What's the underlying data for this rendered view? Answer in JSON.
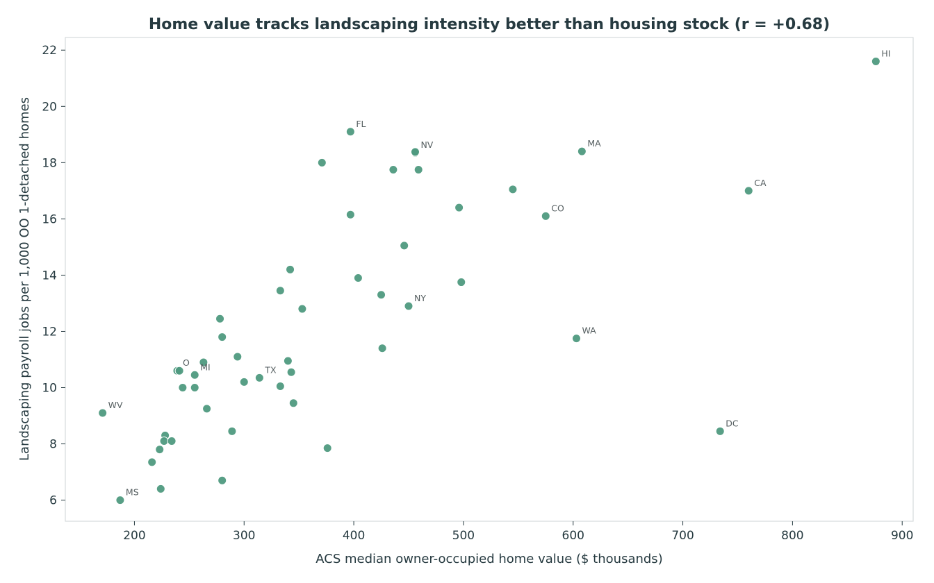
{
  "chart_data": {
    "type": "scatter",
    "title": "Home value tracks landscaping intensity better than housing stock  (r = +0.68)",
    "xlabel": "ACS median owner-occupied home value ($ thousands)",
    "ylabel": "Landscaping payroll jobs per 1,000 OO 1-detached homes",
    "xlim": [
      137,
      910
    ],
    "ylim": [
      5.25,
      22.45
    ],
    "xticks": [
      200,
      300,
      400,
      500,
      600,
      700,
      800,
      900
    ],
    "yticks": [
      6,
      8,
      10,
      12,
      14,
      16,
      18,
      20,
      22
    ],
    "grid": false,
    "marker_color": "#4f9a7f",
    "points": [
      {
        "x": 876,
        "y": 21.6,
        "label": "HI"
      },
      {
        "x": 397,
        "y": 19.1,
        "label": "FL"
      },
      {
        "x": 456,
        "y": 18.35,
        "label": "NV"
      },
      {
        "x": 608,
        "y": 18.4,
        "label": "MA"
      },
      {
        "x": 760,
        "y": 17.0,
        "label": "CA"
      },
      {
        "x": 575,
        "y": 16.1,
        "label": "CO"
      },
      {
        "x": 450,
        "y": 12.9,
        "label": "NY"
      },
      {
        "x": 603,
        "y": 11.75,
        "label": "WA"
      },
      {
        "x": 255,
        "y": 10.45,
        "label": "MI"
      },
      {
        "x": 314,
        "y": 10.35,
        "label": "TX"
      },
      {
        "x": 171,
        "y": 9.1,
        "label": "WV"
      },
      {
        "x": 734,
        "y": 8.45,
        "label": "DC"
      },
      {
        "x": 187,
        "y": 6.0,
        "label": "MS"
      },
      {
        "x": 239,
        "y": 10.6,
        "label": "O"
      },
      {
        "x": 456,
        "y": 18.38,
        "label": ""
      },
      {
        "x": 371,
        "y": 18.0,
        "label": ""
      },
      {
        "x": 436,
        "y": 17.75,
        "label": ""
      },
      {
        "x": 459,
        "y": 17.75,
        "label": ""
      },
      {
        "x": 545,
        "y": 17.05,
        "label": ""
      },
      {
        "x": 496,
        "y": 16.4,
        "label": ""
      },
      {
        "x": 397,
        "y": 16.15,
        "label": ""
      },
      {
        "x": 446,
        "y": 15.05,
        "label": ""
      },
      {
        "x": 342,
        "y": 14.2,
        "label": ""
      },
      {
        "x": 404,
        "y": 13.9,
        "label": ""
      },
      {
        "x": 498,
        "y": 13.75,
        "label": ""
      },
      {
        "x": 333,
        "y": 13.45,
        "label": ""
      },
      {
        "x": 425,
        "y": 13.3,
        "label": ""
      },
      {
        "x": 353,
        "y": 12.8,
        "label": ""
      },
      {
        "x": 278,
        "y": 12.45,
        "label": ""
      },
      {
        "x": 280,
        "y": 11.8,
        "label": ""
      },
      {
        "x": 426,
        "y": 11.4,
        "label": ""
      },
      {
        "x": 294,
        "y": 11.1,
        "label": ""
      },
      {
        "x": 263,
        "y": 10.9,
        "label": ""
      },
      {
        "x": 340,
        "y": 10.95,
        "label": ""
      },
      {
        "x": 241,
        "y": 10.6,
        "label": ""
      },
      {
        "x": 343,
        "y": 10.55,
        "label": ""
      },
      {
        "x": 300,
        "y": 10.2,
        "label": ""
      },
      {
        "x": 244,
        "y": 10.0,
        "label": ""
      },
      {
        "x": 255,
        "y": 10.0,
        "label": ""
      },
      {
        "x": 333,
        "y": 10.05,
        "label": ""
      },
      {
        "x": 345,
        "y": 9.45,
        "label": ""
      },
      {
        "x": 266,
        "y": 9.25,
        "label": ""
      },
      {
        "x": 289,
        "y": 8.45,
        "label": ""
      },
      {
        "x": 228,
        "y": 8.3,
        "label": ""
      },
      {
        "x": 227,
        "y": 8.1,
        "label": ""
      },
      {
        "x": 234,
        "y": 8.1,
        "label": ""
      },
      {
        "x": 376,
        "y": 7.85,
        "label": ""
      },
      {
        "x": 223,
        "y": 7.8,
        "label": ""
      },
      {
        "x": 216,
        "y": 7.35,
        "label": ""
      },
      {
        "x": 280,
        "y": 6.7,
        "label": ""
      },
      {
        "x": 224,
        "y": 6.4,
        "label": ""
      }
    ]
  }
}
